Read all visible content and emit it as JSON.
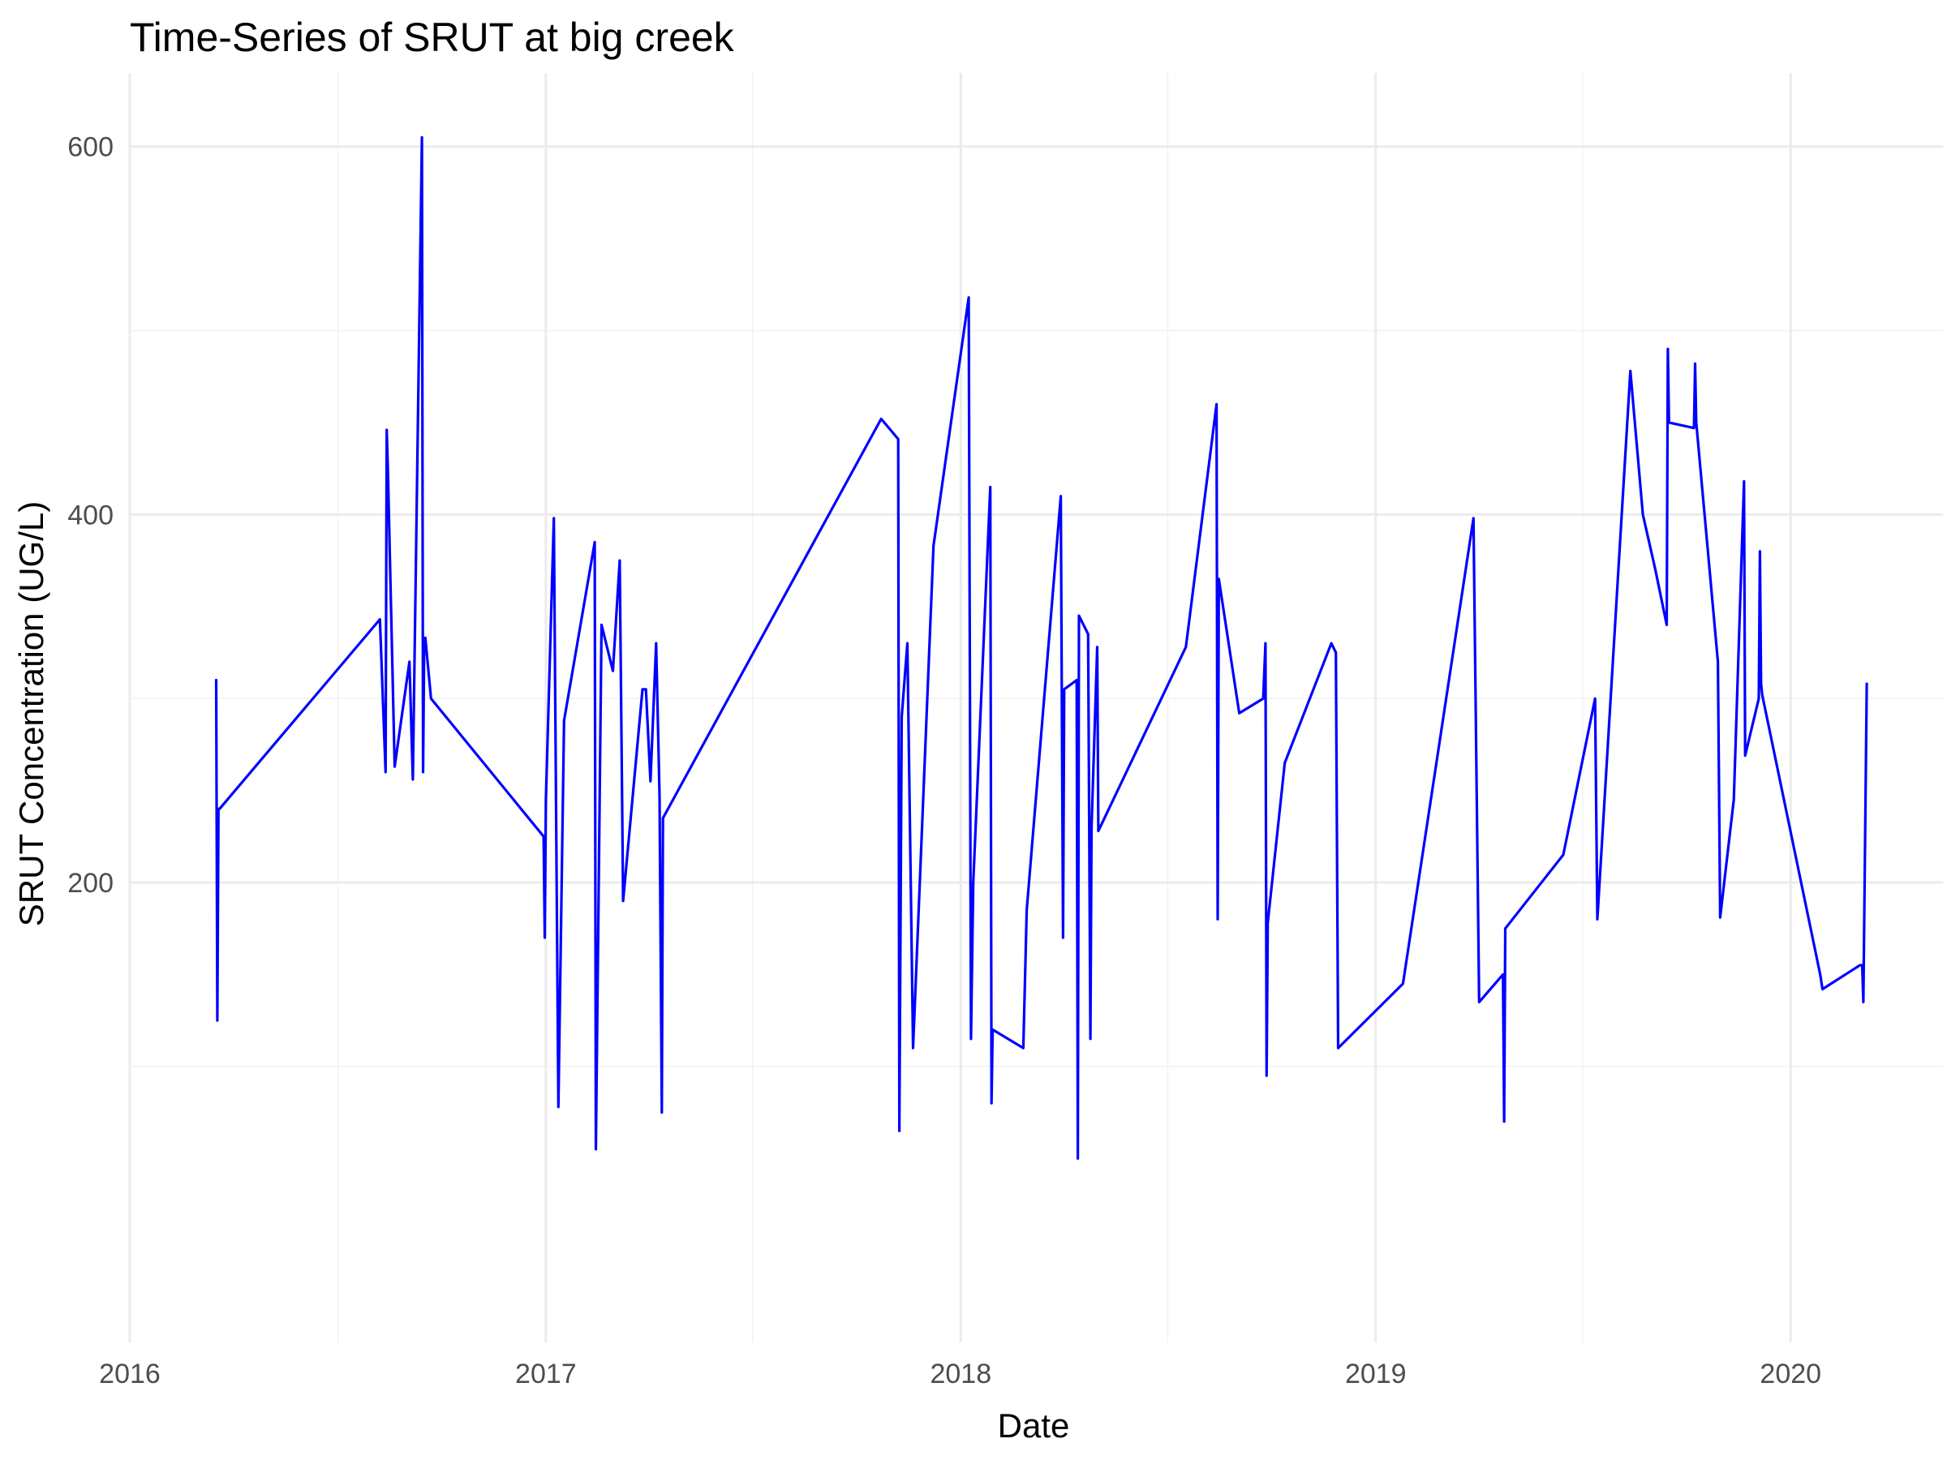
{
  "chart_data": {
    "type": "line",
    "title": "Time-Series of SRUT at big creek",
    "xlabel": "Date",
    "ylabel": "SRUT Concentration (UG/L)",
    "xlim": [
      "2016-01-01",
      "2020-05-14"
    ],
    "ylim": [
      -50,
      640
    ],
    "x_ticks": [
      "2016-01-01",
      "2017-01-01",
      "2018-01-01",
      "2019-01-01",
      "2020-01-01"
    ],
    "x_tick_labels": [
      "2016",
      "2017",
      "2018",
      "2019",
      "2020"
    ],
    "y_ticks": [
      200,
      400,
      600
    ],
    "y_tick_labels": [
      "200",
      "400",
      "600"
    ],
    "grid": true,
    "legend": "none",
    "line_color": "#0000ff",
    "series": [
      {
        "x": [
          "2016-03-17",
          "2016-03-18",
          "2016-03-19",
          "2016-03-20",
          "2016-08-08",
          "2016-08-13",
          "2016-08-14",
          "2016-08-15",
          "2016-08-21",
          "2016-09-03",
          "2016-09-06",
          "2016-09-14",
          "2016-09-15",
          "2016-09-16",
          "2016-09-17",
          "2016-09-22",
          "2016-12-30",
          "2016-12-31",
          "2017-01-01",
          "2017-01-08",
          "2017-01-12",
          "2017-01-17",
          "2017-02-13",
          "2017-02-14",
          "2017-02-19",
          "2017-03-01",
          "2017-03-07",
          "2017-03-10",
          "2017-03-27",
          "2017-03-30",
          "2017-04-03",
          "2017-04-08",
          "2017-04-11",
          "2017-04-13",
          "2017-04-14",
          "2017-10-23",
          "2017-11-07",
          "2017-11-08",
          "2017-11-10",
          "2017-11-15",
          "2017-11-20",
          "2017-12-08",
          "2018-01-08",
          "2018-01-10",
          "2018-01-12",
          "2018-01-27",
          "2018-01-28",
          "2018-01-29",
          "2018-02-25",
          "2018-02-28",
          "2018-03-30",
          "2018-04-01",
          "2018-04-02",
          "2018-04-13",
          "2018-04-14",
          "2018-04-15",
          "2018-04-23",
          "2018-04-25",
          "2018-04-26",
          "2018-05-01",
          "2018-05-02",
          "2018-07-18",
          "2018-08-14",
          "2018-08-15",
          "2018-08-16",
          "2018-09-03",
          "2018-09-24",
          "2018-09-26",
          "2018-09-27",
          "2018-09-28",
          "2018-10-13",
          "2018-11-23",
          "2018-11-27",
          "2018-11-29",
          "2019-01-25",
          "2019-03-28",
          "2019-04-02",
          "2019-04-23",
          "2019-04-24",
          "2019-04-25",
          "2019-06-15",
          "2019-07-13",
          "2019-07-15",
          "2019-08-13",
          "2019-08-24",
          "2019-09-04",
          "2019-09-14",
          "2019-09-15",
          "2019-09-16",
          "2019-10-08",
          "2019-10-09",
          "2019-10-10",
          "2019-10-29",
          "2019-10-31",
          "2019-11-12",
          "2019-11-21",
          "2019-11-22",
          "2019-12-04",
          "2019-12-05",
          "2019-12-06",
          "2019-12-07",
          "2020-01-27",
          "2020-01-29",
          "2020-03-02",
          "2020-03-04",
          "2020-03-05",
          "2020-03-08"
        ],
        "values": [
          310,
          125,
          240,
          240,
          343,
          260,
          446,
          425,
          263,
          320,
          256,
          605,
          260,
          330,
          333,
          300,
          225,
          170,
          245,
          398,
          78,
          288,
          385,
          55,
          340,
          315,
          375,
          190,
          305,
          305,
          255,
          330,
          247,
          75,
          235,
          452,
          441,
          65,
          290,
          330,
          110,
          383,
          518,
          115,
          200,
          415,
          80,
          120,
          110,
          185,
          410,
          170,
          305,
          310,
          50,
          345,
          335,
          115,
          230,
          328,
          228,
          328,
          460,
          180,
          365,
          292,
          300,
          330,
          95,
          178,
          265,
          330,
          325,
          110,
          145,
          398,
          135,
          150,
          70,
          175,
          215,
          300,
          180,
          478,
          400,
          370,
          340,
          490,
          450,
          447,
          482,
          450,
          320,
          181,
          245,
          418,
          269,
          300,
          380,
          308,
          302,
          150,
          142,
          155,
          155,
          135,
          308
        ]
      }
    ]
  }
}
